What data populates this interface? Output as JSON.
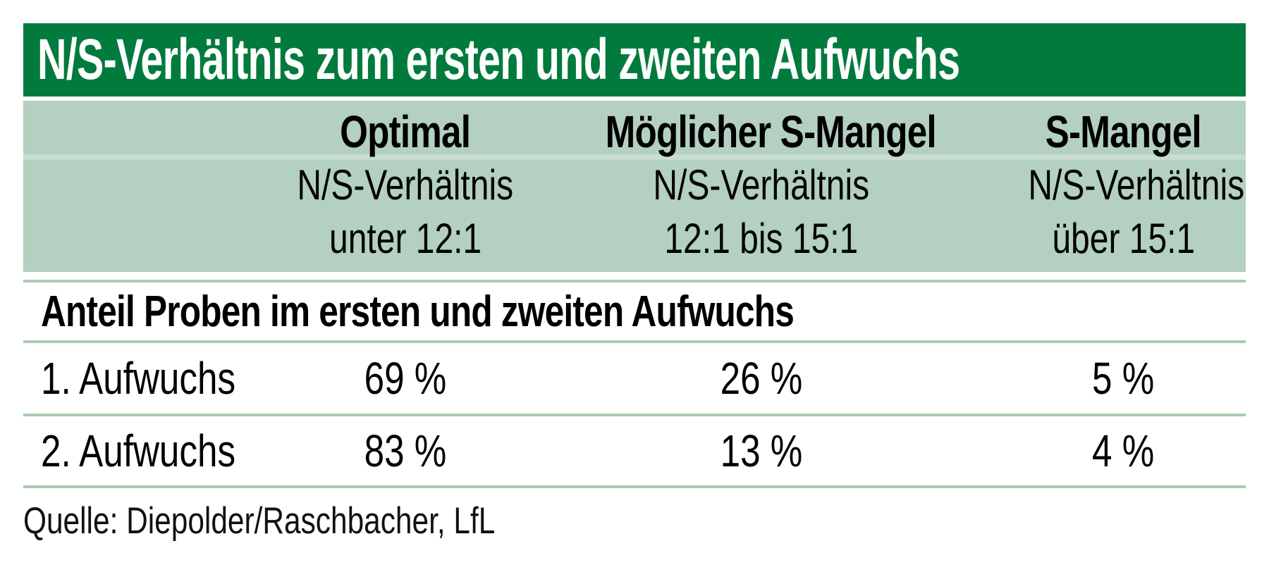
{
  "title": "N/S-Verhältnis zum ersten und zweiten Aufwuchs",
  "header_columns": [
    {
      "label": "Optimal",
      "line2": "N/S-Verhältnis",
      "line3": "unter 12:1"
    },
    {
      "label": "Möglicher S-Mangel",
      "line2": "N/S-Verhältnis",
      "line3": "12:1 bis 15:1"
    },
    {
      "label": "S-Mangel",
      "line2": "N/S-Verhältnis",
      "line3": "über 15:1"
    }
  ],
  "section_heading": "Anteil Proben im ersten und zweiten Aufwuchs",
  "rows": [
    {
      "label": "1. Aufwuchs",
      "values": [
        "69 %",
        "26 %",
        "5 %"
      ]
    },
    {
      "label": "2. Aufwuchs",
      "values": [
        "83 %",
        "13 %",
        "4 %"
      ]
    }
  ],
  "source": "Quelle: Diepolder/Raschbacher, LfL",
  "colors": {
    "title_bar_green": "#007A3D",
    "header_block_green": "#B3D0C1",
    "separator_green": "#A8CBAF",
    "title_text": "#FFFFFF",
    "body_text": "#000000"
  },
  "chart_data": {
    "type": "table",
    "title": "N/S-Verhältnis zum ersten und zweiten Aufwuchs",
    "columns": [
      "",
      "Optimal — N/S-Verhältnis unter 12:1",
      "Möglicher S-Mangel — N/S-Verhältnis 12:1 bis 15:1",
      "S-Mangel — N/S-Verhältnis über 15:1"
    ],
    "section": "Anteil Proben im ersten und zweiten Aufwuchs",
    "rows": [
      [
        "1. Aufwuchs",
        "69 %",
        "26 %",
        "5 %"
      ],
      [
        "2. Aufwuchs",
        "83 %",
        "13 %",
        "4 %"
      ]
    ],
    "values_percent": [
      [
        69,
        26,
        5
      ],
      [
        83,
        13,
        4
      ]
    ],
    "source": "Quelle: Diepolder/Raschbacher, LfL"
  }
}
